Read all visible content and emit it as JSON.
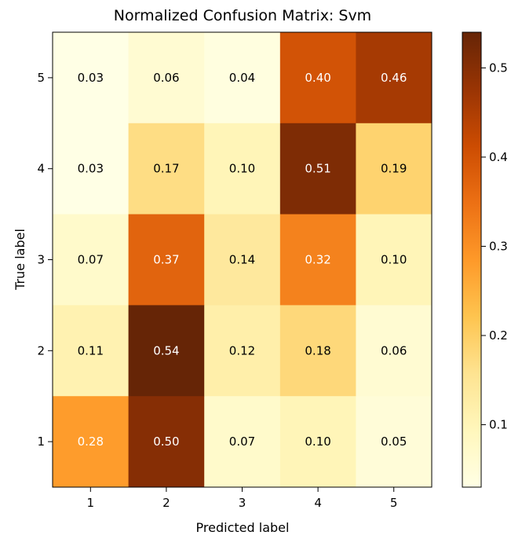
{
  "chart_data": {
    "type": "heatmap",
    "title": "Normalized Confusion Matrix: Svm",
    "xlabel": "Predicted label",
    "ylabel": "True label",
    "x_categories": [
      "1",
      "2",
      "3",
      "4",
      "5"
    ],
    "y_categories": [
      "5",
      "4",
      "3",
      "2",
      "1"
    ],
    "values": [
      [
        0.03,
        0.06,
        0.04,
        0.4,
        0.46
      ],
      [
        0.03,
        0.17,
        0.1,
        0.51,
        0.19
      ],
      [
        0.07,
        0.37,
        0.14,
        0.32,
        0.1
      ],
      [
        0.11,
        0.54,
        0.12,
        0.18,
        0.06
      ],
      [
        0.28,
        0.5,
        0.07,
        0.1,
        0.05
      ]
    ],
    "value_labels": [
      [
        "0.03",
        "0.06",
        "0.04",
        "0.40",
        "0.46"
      ],
      [
        "0.03",
        "0.17",
        "0.10",
        "0.51",
        "0.19"
      ],
      [
        "0.07",
        "0.37",
        "0.14",
        "0.32",
        "0.10"
      ],
      [
        "0.11",
        "0.54",
        "0.12",
        "0.18",
        "0.06"
      ],
      [
        "0.28",
        "0.50",
        "0.07",
        "0.10",
        "0.05"
      ]
    ],
    "colormap": "YlOrBr",
    "colormap_stops": [
      "#ffffe5",
      "#fff7bc",
      "#fee391",
      "#fec44f",
      "#fe9929",
      "#ec7014",
      "#cc4c02",
      "#993404",
      "#662506"
    ],
    "label_color_light": "#ffffff",
    "label_color_dark": "#000000",
    "colorbar": {
      "vmin": 0.03,
      "vmax": 0.54,
      "ticks": [
        0.1,
        0.2,
        0.3,
        0.4,
        0.5
      ],
      "tick_labels": [
        "0.1",
        "0.2",
        "0.3",
        "0.4",
        "0.5"
      ]
    }
  }
}
